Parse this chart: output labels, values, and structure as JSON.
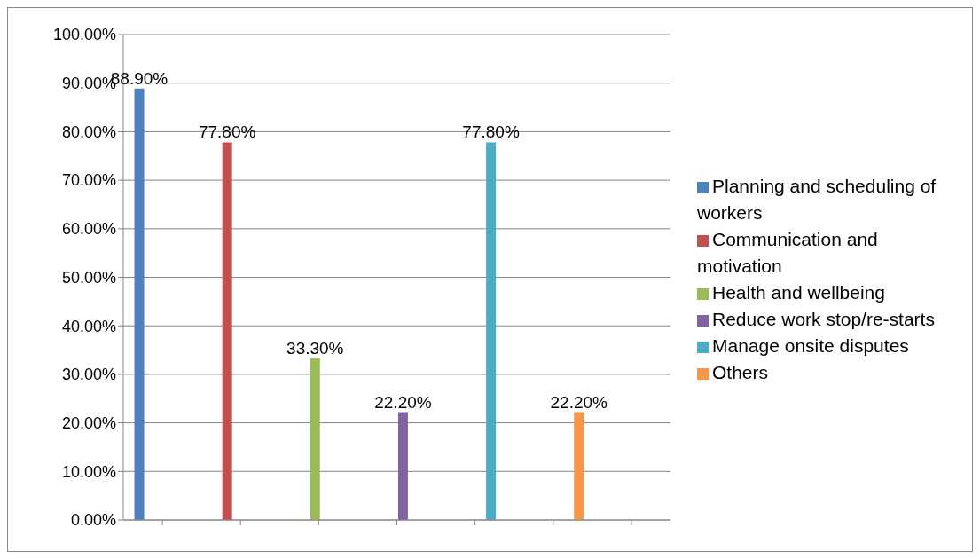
{
  "chart_data": {
    "type": "bar",
    "categories": [
      null,
      null,
      null,
      null,
      null,
      null,
      null
    ],
    "series": [
      {
        "name": "Planning and scheduling of workers",
        "color": "#4f81bd",
        "values": [
          88.9,
          null,
          null,
          null,
          null,
          null,
          null
        ],
        "value_labels": [
          "88.90%",
          null,
          null,
          null,
          null,
          null,
          null
        ]
      },
      {
        "name": "Communication and motivation",
        "color": "#c0504d",
        "values": [
          null,
          77.8,
          null,
          null,
          null,
          null,
          null
        ],
        "value_labels": [
          null,
          "77.80%",
          null,
          null,
          null,
          null,
          null
        ]
      },
      {
        "name": "Health and wellbeing",
        "color": "#9bbb59",
        "values": [
          null,
          null,
          33.3,
          null,
          null,
          null,
          null
        ],
        "value_labels": [
          null,
          null,
          "33.30%",
          null,
          null,
          null,
          null
        ]
      },
      {
        "name": "Reduce work stop/re-starts",
        "color": "#8064a2",
        "values": [
          null,
          null,
          null,
          22.2,
          null,
          null,
          null
        ],
        "value_labels": [
          null,
          null,
          null,
          "22.20%",
          null,
          null,
          null
        ]
      },
      {
        "name": "Manage onsite disputes",
        "color": "#4bacc6",
        "values": [
          null,
          null,
          null,
          null,
          77.8,
          null,
          null
        ],
        "value_labels": [
          null,
          null,
          null,
          null,
          "77.80%",
          null,
          null
        ]
      },
      {
        "name": "Others",
        "color": "#f79646",
        "values": [
          null,
          null,
          null,
          null,
          null,
          22.2,
          null
        ],
        "value_labels": [
          null,
          null,
          null,
          null,
          null,
          "22.20%",
          null
        ]
      }
    ],
    "ylim": [
      0,
      100
    ],
    "yticks": [
      {
        "value": 0,
        "label": "0.00%"
      },
      {
        "value": 10,
        "label": "10.00%"
      },
      {
        "value": 20,
        "label": "20.00%"
      },
      {
        "value": 30,
        "label": "30.00%"
      },
      {
        "value": 40,
        "label": "40.00%"
      },
      {
        "value": 50,
        "label": "50.00%"
      },
      {
        "value": 60,
        "label": "60.00%"
      },
      {
        "value": 70,
        "label": "70.00%"
      },
      {
        "value": 80,
        "label": "80.00%"
      },
      {
        "value": 90,
        "label": "90.00%"
      },
      {
        "value": 100,
        "label": "100.00%"
      }
    ],
    "grid": "y",
    "legend": "right"
  }
}
